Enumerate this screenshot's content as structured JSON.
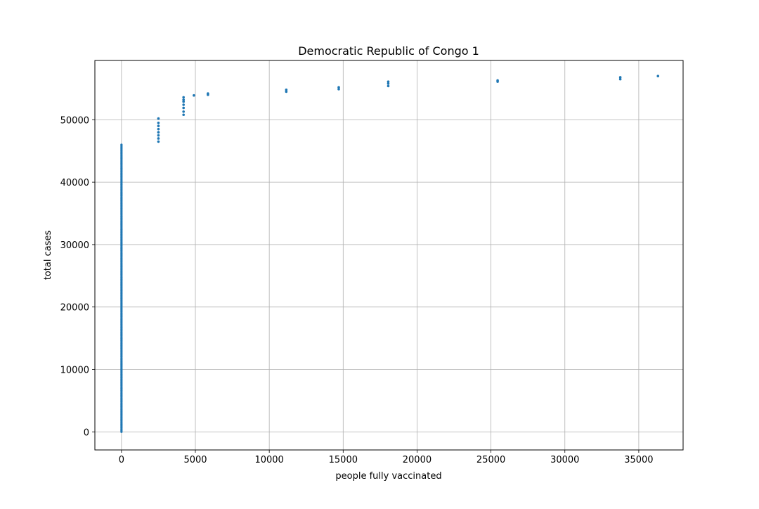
{
  "chart_data": {
    "type": "scatter",
    "title": "Democratic Republic of Congo 1",
    "xlabel": "people fully vaccinated",
    "ylabel": "total cases",
    "xlim": [
      -1800,
      38000
    ],
    "ylim": [
      -2900,
      59500
    ],
    "xticks": [
      0,
      5000,
      10000,
      15000,
      20000,
      25000,
      30000,
      35000
    ],
    "yticks": [
      0,
      10000,
      20000,
      30000,
      40000,
      50000
    ],
    "grid": true,
    "marker_color": "#1f77b4",
    "series": [
      {
        "points": [
          {
            "x": 2500,
            "y": 46500
          },
          {
            "x": 2500,
            "y": 47000
          },
          {
            "x": 2500,
            "y": 47500
          },
          {
            "x": 2500,
            "y": 48000
          },
          {
            "x": 2500,
            "y": 48500
          },
          {
            "x": 2500,
            "y": 49000
          },
          {
            "x": 2500,
            "y": 49500
          },
          {
            "x": 2500,
            "y": 50200
          },
          {
            "x": 4200,
            "y": 50800
          },
          {
            "x": 4200,
            "y": 51300
          },
          {
            "x": 4200,
            "y": 51900
          },
          {
            "x": 4200,
            "y": 52400
          },
          {
            "x": 4200,
            "y": 52900
          },
          {
            "x": 4200,
            "y": 53200
          },
          {
            "x": 4200,
            "y": 53600
          },
          {
            "x": 4900,
            "y": 53900
          },
          {
            "x": 5850,
            "y": 54000
          },
          {
            "x": 5850,
            "y": 54200
          },
          {
            "x": 11150,
            "y": 54500
          },
          {
            "x": 11150,
            "y": 54800
          },
          {
            "x": 14700,
            "y": 54900
          },
          {
            "x": 14700,
            "y": 55200
          },
          {
            "x": 18050,
            "y": 55400
          },
          {
            "x": 18050,
            "y": 55800
          },
          {
            "x": 18050,
            "y": 56100
          },
          {
            "x": 25450,
            "y": 56100
          },
          {
            "x": 25450,
            "y": 56300
          },
          {
            "x": 33750,
            "y": 56500
          },
          {
            "x": 33750,
            "y": 56800
          },
          {
            "x": 36300,
            "y": 57000
          }
        ],
        "zero_vaccinated_range": {
          "x": 0,
          "y_min": 0,
          "y_max": 46000,
          "step": 200
        }
      }
    ]
  }
}
